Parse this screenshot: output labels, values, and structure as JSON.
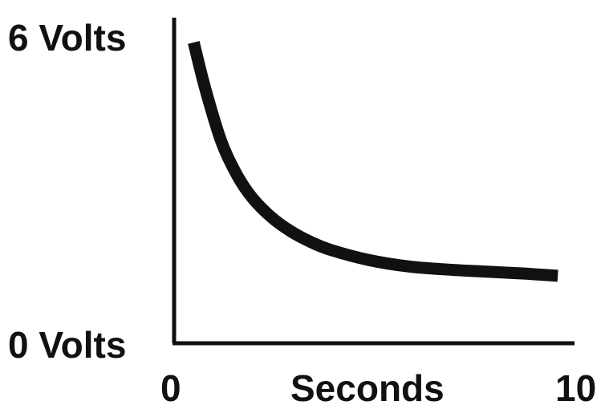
{
  "chart_data": {
    "type": "line",
    "title": "",
    "xlabel": "Seconds",
    "ylabel": "",
    "xlim": [
      0,
      10
    ],
    "ylim": [
      0,
      6
    ],
    "x_tick_labels": [
      {
        "value": 0,
        "label": "0"
      },
      {
        "value": 10,
        "label": "10"
      }
    ],
    "y_tick_labels": [
      {
        "value": 6,
        "label": "6 Volts"
      },
      {
        "value": 0,
        "label": "0 Volts"
      }
    ],
    "grid": false,
    "legend": "none",
    "line_color": "#111111",
    "series": [
      {
        "x": [
          0.5,
          0.8,
          1.2,
          1.6,
          2.0,
          2.5,
          3.0,
          3.5,
          4.0,
          5.0,
          6.0,
          7.0,
          8.0,
          9.0,
          9.8
        ],
        "y": [
          5.8,
          4.9,
          3.9,
          3.25,
          2.8,
          2.42,
          2.15,
          1.95,
          1.8,
          1.6,
          1.48,
          1.42,
          1.38,
          1.34,
          1.3
        ]
      }
    ]
  }
}
